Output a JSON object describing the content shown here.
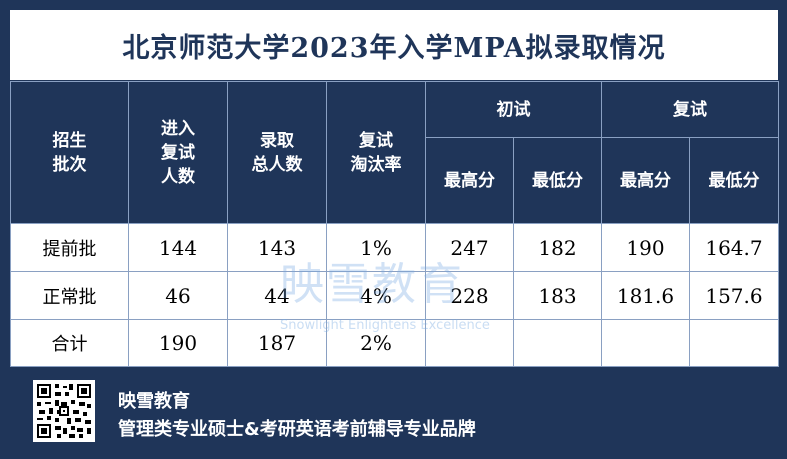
{
  "title": "北京师范大学2023年入学MPA拟录取情况",
  "headers": {
    "batch": [
      "招生",
      "批次"
    ],
    "retest_count": [
      "进入",
      "复试",
      "人数"
    ],
    "admitted_total": [
      "录取",
      "总人数"
    ],
    "elimination_rate": [
      "复试",
      "淘汰率"
    ],
    "initial_exam": "初试",
    "retest": "复试",
    "max_score": "最高分",
    "min_score": "最低分"
  },
  "rows": [
    {
      "batch": "提前批",
      "retest_count": "144",
      "admitted": "143",
      "rate": "1%",
      "init_max": "247",
      "init_min": "182",
      "re_max": "190",
      "re_min": "164.7"
    },
    {
      "batch": "正常批",
      "retest_count": "46",
      "admitted": "44",
      "rate": "4%",
      "init_max": "228",
      "init_min": "183",
      "re_max": "181.6",
      "re_min": "157.6"
    },
    {
      "batch": "合计",
      "retest_count": "190",
      "admitted": "187",
      "rate": "2%",
      "init_max": "",
      "init_min": "",
      "re_max": "",
      "re_min": ""
    }
  ],
  "watermark": {
    "main": "映雪教育",
    "sub": "Snowlight Enlightens Excellence"
  },
  "footer": {
    "brand": "映雪教育",
    "slogan": "管理类专业硕士&考研英语考前辅导专业品牌"
  }
}
